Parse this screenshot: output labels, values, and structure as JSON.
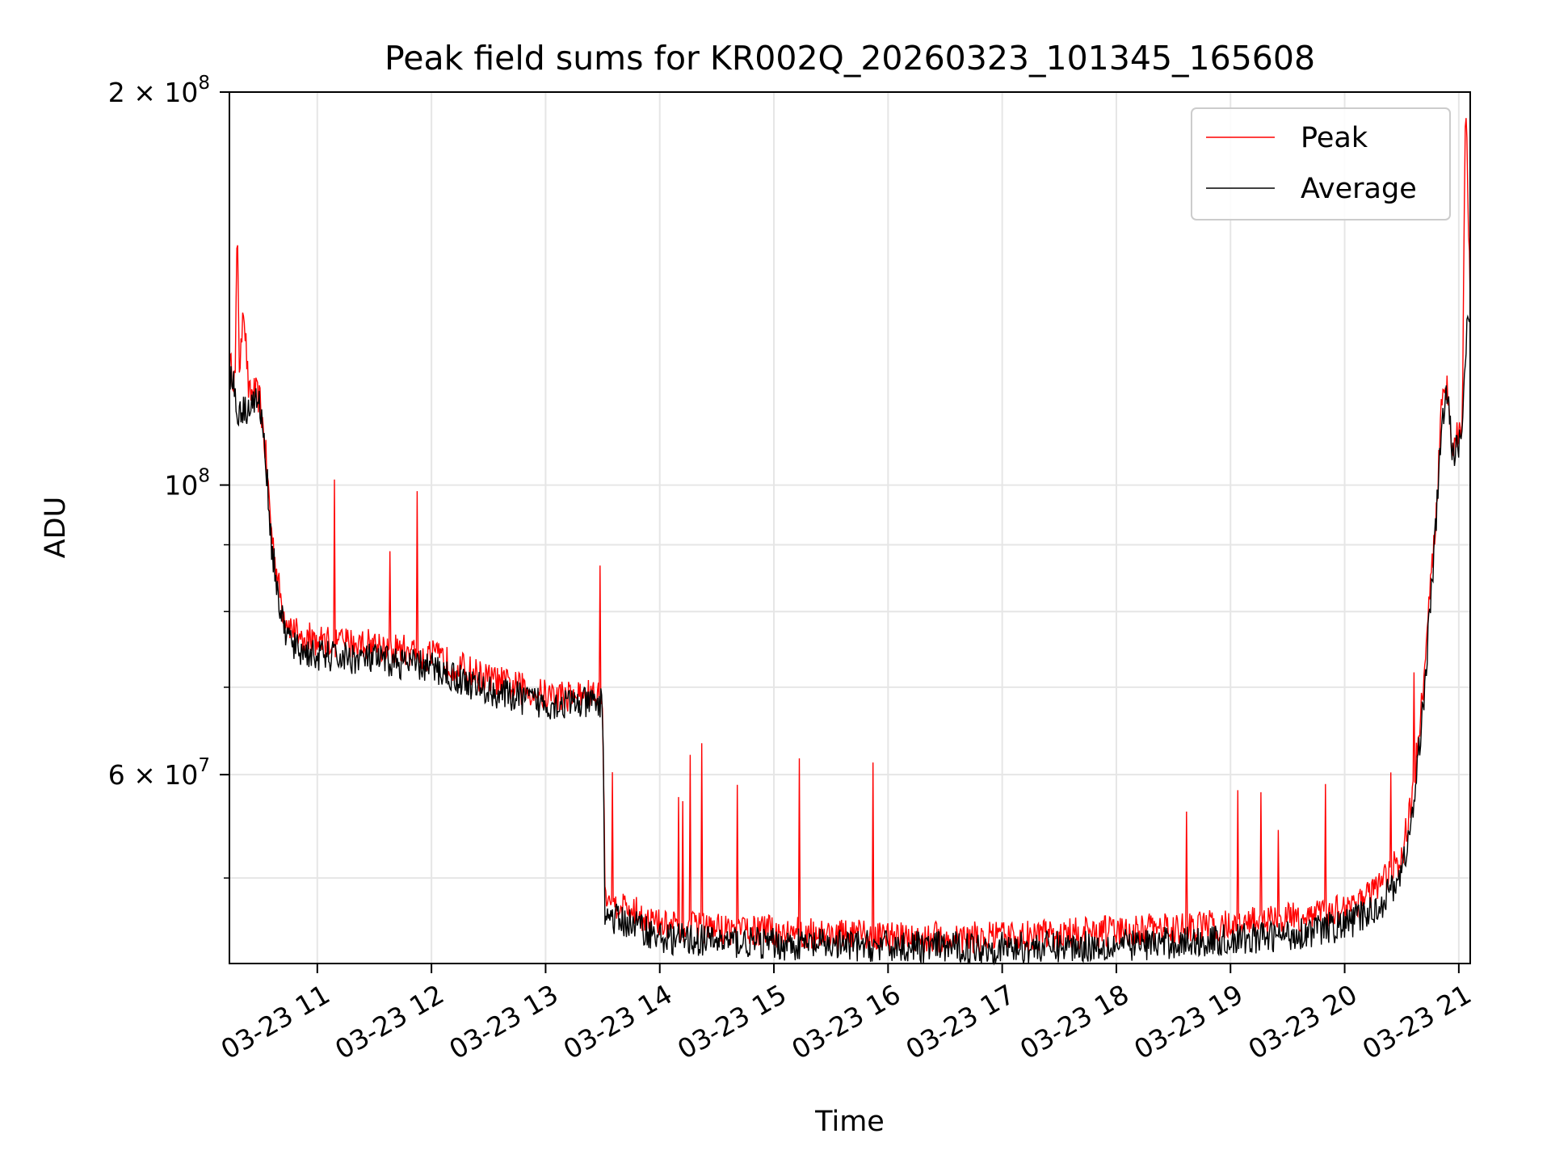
{
  "chart_data": {
    "type": "line",
    "title": "Peak field sums for KR002Q_20260323_101345_165608",
    "xlabel": "Time",
    "ylabel": "ADU",
    "yscale": "log",
    "ylim": [
      43000000,
      200000000
    ],
    "xlim_hours": [
      10.23,
      21.1
    ],
    "grid": true,
    "legend_position": "upper right",
    "x_ticks": [
      {
        "value": 11,
        "label": "03-23 11"
      },
      {
        "value": 12,
        "label": "03-23 12"
      },
      {
        "value": 13,
        "label": "03-23 13"
      },
      {
        "value": 14,
        "label": "03-23 14"
      },
      {
        "value": 15,
        "label": "03-23 15"
      },
      {
        "value": 16,
        "label": "03-23 16"
      },
      {
        "value": 17,
        "label": "03-23 17"
      },
      {
        "value": 18,
        "label": "03-23 18"
      },
      {
        "value": 19,
        "label": "03-23 19"
      },
      {
        "value": 20,
        "label": "03-23 20"
      },
      {
        "value": 21,
        "label": "03-23 21"
      }
    ],
    "y_major_ticks": [
      {
        "value": 200000000,
        "mantissa": "2 × 10",
        "exp": "8"
      },
      {
        "value": 100000000,
        "mantissa": "10",
        "exp": "8"
      },
      {
        "value": 60000000,
        "mantissa": "6 × 10",
        "exp": "7"
      }
    ],
    "y_minor_ticks": [
      50000000,
      70000000,
      80000000,
      90000000
    ],
    "series": [
      {
        "name": "Peak",
        "color": "#ff0000",
        "x": [
          10.23,
          10.28,
          10.3,
          10.32,
          10.35,
          10.4,
          10.45,
          10.5,
          10.55,
          10.6,
          10.65,
          10.7,
          10.8,
          11.0,
          11.5,
          12.0,
          12.5,
          13.0,
          13.5,
          13.52,
          13.6,
          13.8,
          14.0,
          15.0,
          16.0,
          17.0,
          18.0,
          19.0,
          19.5,
          20.0,
          20.3,
          20.5,
          20.6,
          20.7,
          20.8,
          20.85,
          20.9,
          20.95,
          21.0,
          21.03,
          21.06,
          21.1
        ],
        "y": [
          124000000,
          120000000,
          160000000,
          118000000,
          140000000,
          117000000,
          118000000,
          116000000,
          105000000,
          92000000,
          85000000,
          80000000,
          77000000,
          76000000,
          75500000,
          74000000,
          71000000,
          69000000,
          69000000,
          49000000,
          48000000,
          47000000,
          46000000,
          45500000,
          45000000,
          45000000,
          45500000,
          46000000,
          46500000,
          47500000,
          49000000,
          52000000,
          58000000,
          72000000,
          95000000,
          115000000,
          119000000,
          107000000,
          110000000,
          112000000,
          200000000,
          140000000
        ]
      },
      {
        "name": "Average",
        "color": "#000000",
        "x": [
          10.23,
          10.28,
          10.3,
          10.32,
          10.35,
          10.4,
          10.45,
          10.5,
          10.55,
          10.6,
          10.65,
          10.7,
          10.8,
          11.0,
          11.5,
          12.0,
          12.5,
          13.0,
          13.5,
          13.52,
          13.6,
          13.8,
          14.0,
          15.0,
          16.0,
          17.0,
          18.0,
          19.0,
          19.5,
          20.0,
          20.3,
          20.5,
          20.6,
          20.7,
          20.8,
          20.85,
          20.9,
          20.95,
          21.0,
          21.03,
          21.06,
          21.1
        ],
        "y": [
          122000000,
          118000000,
          112000000,
          115000000,
          114000000,
          115000000,
          116000000,
          115000000,
          104000000,
          90000000,
          83000000,
          78000000,
          75000000,
          74000000,
          73500000,
          72500000,
          69500000,
          68000000,
          68000000,
          47000000,
          46500000,
          46000000,
          45000000,
          44500000,
          44300000,
          44200000,
          44400000,
          44800000,
          45200000,
          46000000,
          47500000,
          50500000,
          56000000,
          70000000,
          93000000,
          112000000,
          117000000,
          105000000,
          108000000,
          110000000,
          128000000,
          138000000
        ]
      }
    ]
  }
}
